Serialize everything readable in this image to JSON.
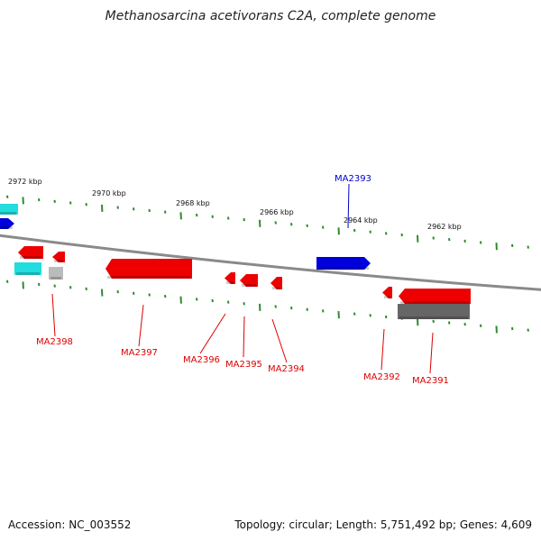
{
  "title": "Methanosarcina acetivorans C2A, complete genome",
  "footer": {
    "accession": "Accession: NC_003552",
    "topology": "Topology: circular; Length: 5,751,492 bp; Genes: 4,609"
  },
  "colors": {
    "backbone": "#8a8a8a",
    "tick": "#2e8b2e",
    "forward_gene": "#0000dd",
    "reverse_gene": "#ee0000",
    "cyan_feature": "#22dddd",
    "grey_feature": "#666666",
    "light_grey_feature": "#bbbbbb",
    "forward_label": "#0000cc",
    "reverse_label": "#dd0000"
  },
  "scale_labels": [
    "2972 kbp",
    "2970 kbp",
    "2968 kbp",
    "2966 kbp",
    "2964 kbp",
    "2962 kbp"
  ],
  "genes": [
    {
      "name": "MA2393",
      "strand": "forward"
    },
    {
      "name": "MA2398",
      "strand": "reverse"
    },
    {
      "name": "MA2397",
      "strand": "reverse"
    },
    {
      "name": "MA2396",
      "strand": "reverse"
    },
    {
      "name": "MA2395",
      "strand": "reverse"
    },
    {
      "name": "MA2394",
      "strand": "reverse"
    },
    {
      "name": "MA2392",
      "strand": "reverse"
    },
    {
      "name": "MA2391",
      "strand": "reverse"
    }
  ]
}
